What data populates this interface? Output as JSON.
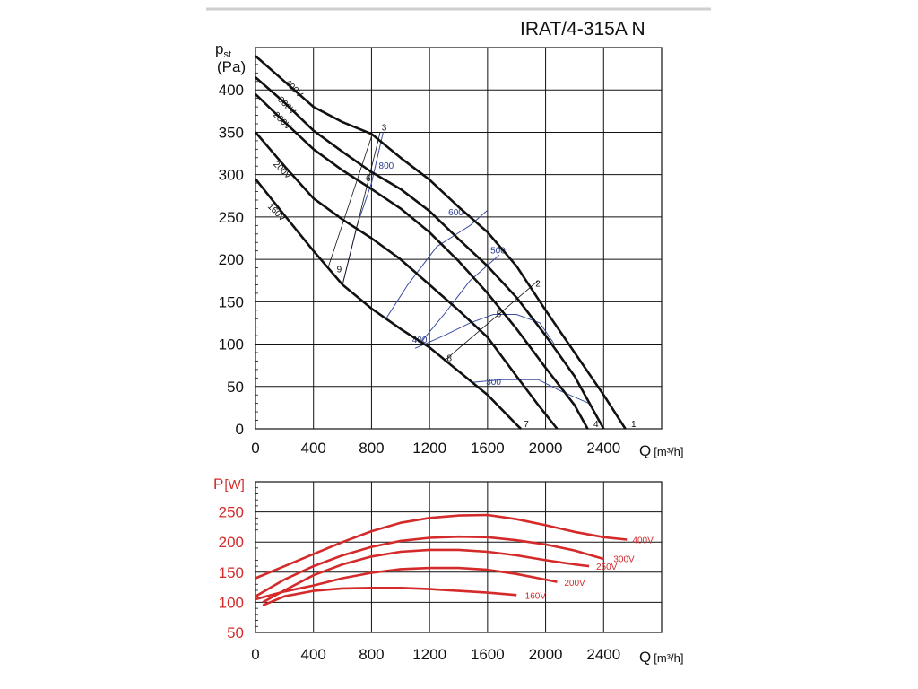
{
  "title": "IRAT/4-315A N",
  "chart_data": [
    {
      "type": "line",
      "name": "pressure-chart",
      "ylabel_main": "p",
      "ylabel_sub": "st",
      "ylabel_unit": "(Pa)",
      "xlabel": "Q",
      "xlabel_unit": "[m³/h]",
      "xlim": [
        0,
        2800
      ],
      "ylim": [
        0,
        450
      ],
      "xticks": [
        0,
        400,
        800,
        1200,
        1600,
        2000,
        2400
      ],
      "yticks": [
        0,
        50,
        100,
        150,
        200,
        250,
        300,
        350,
        400
      ],
      "series": [
        {
          "name": "400V",
          "points": [
            [
              0,
              440
            ],
            [
              200,
              410
            ],
            [
              400,
              380
            ],
            [
              600,
              362
            ],
            [
              800,
              348
            ],
            [
              1000,
              320
            ],
            [
              1200,
              294
            ],
            [
              1400,
              262
            ],
            [
              1600,
              232
            ],
            [
              1800,
              192
            ],
            [
              2000,
              140
            ],
            [
              2200,
              90
            ],
            [
              2400,
              40
            ],
            [
              2550,
              0
            ]
          ]
        },
        {
          "name": "300V",
          "points": [
            [
              0,
              415
            ],
            [
              200,
              385
            ],
            [
              400,
              352
            ],
            [
              600,
              327
            ],
            [
              800,
              303
            ],
            [
              1000,
              283
            ],
            [
              1200,
              257
            ],
            [
              1400,
              224
            ],
            [
              1600,
              192
            ],
            [
              1800,
              155
            ],
            [
              2000,
              110
            ],
            [
              2200,
              62
            ],
            [
              2400,
              0
            ]
          ]
        },
        {
          "name": "250V",
          "points": [
            [
              0,
              395
            ],
            [
              200,
              362
            ],
            [
              400,
              330
            ],
            [
              600,
              305
            ],
            [
              800,
              283
            ],
            [
              1000,
              260
            ],
            [
              1200,
              232
            ],
            [
              1400,
              198
            ],
            [
              1600,
              160
            ],
            [
              1800,
              118
            ],
            [
              2000,
              72
            ],
            [
              2200,
              28
            ],
            [
              2290,
              0
            ]
          ]
        },
        {
          "name": "200V",
          "points": [
            [
              0,
              350
            ],
            [
              200,
              310
            ],
            [
              400,
              272
            ],
            [
              600,
              247
            ],
            [
              800,
              225
            ],
            [
              1000,
              200
            ],
            [
              1200,
              170
            ],
            [
              1400,
              140
            ],
            [
              1600,
              108
            ],
            [
              1800,
              62
            ],
            [
              1950,
              28
            ],
            [
              2080,
              0
            ]
          ]
        },
        {
          "name": "160V",
          "points": [
            [
              0,
              295
            ],
            [
              200,
              252
            ],
            [
              400,
              210
            ],
            [
              600,
              170
            ],
            [
              800,
              142
            ],
            [
              1000,
              118
            ],
            [
              1200,
              96
            ],
            [
              1400,
              68
            ],
            [
              1600,
              40
            ],
            [
              1800,
              5
            ],
            [
              1830,
              0
            ]
          ]
        }
      ],
      "curve_labels": [
        "400V",
        "300V",
        "250V",
        "200V",
        "160V"
      ],
      "efficiency_lines": [
        {
          "label": "800"
        },
        {
          "label": "600"
        },
        {
          "label": "500"
        },
        {
          "label": "400"
        },
        {
          "label": "300"
        }
      ],
      "point_labels": [
        "1",
        "2",
        "3",
        "4",
        "5",
        "6",
        "7",
        "8",
        "9"
      ]
    },
    {
      "type": "line",
      "name": "power-chart",
      "ylabel_main": "P",
      "ylabel_unit": "[W]",
      "xlabel": "Q",
      "xlabel_unit": "[m³/h]",
      "xlim": [
        0,
        2800
      ],
      "ylim": [
        50,
        300
      ],
      "xticks": [
        0,
        400,
        800,
        1200,
        1600,
        2000,
        2400
      ],
      "yticks": [
        50,
        100,
        150,
        200,
        250
      ],
      "series": [
        {
          "name": "400V",
          "points": [
            [
              0,
              140
            ],
            [
              200,
              160
            ],
            [
              400,
              180
            ],
            [
              600,
              200
            ],
            [
              800,
              218
            ],
            [
              1000,
              232
            ],
            [
              1200,
              240
            ],
            [
              1400,
              244
            ],
            [
              1600,
              245
            ],
            [
              1800,
              238
            ],
            [
              2000,
              228
            ],
            [
              2200,
              217
            ],
            [
              2400,
              208
            ],
            [
              2560,
              204
            ]
          ]
        },
        {
          "name": "300V",
          "points": [
            [
              0,
              110
            ],
            [
              200,
              138
            ],
            [
              400,
              160
            ],
            [
              600,
              178
            ],
            [
              800,
              192
            ],
            [
              1000,
              202
            ],
            [
              1200,
              207
            ],
            [
              1400,
              209
            ],
            [
              1600,
              208
            ],
            [
              1800,
              203
            ],
            [
              2000,
              196
            ],
            [
              2200,
              186
            ],
            [
              2400,
              172
            ]
          ]
        },
        {
          "name": "250V",
          "points": [
            [
              50,
              100
            ],
            [
              200,
              120
            ],
            [
              400,
              145
            ],
            [
              600,
              163
            ],
            [
              800,
              176
            ],
            [
              1000,
              184
            ],
            [
              1200,
              187
            ],
            [
              1400,
              187
            ],
            [
              1600,
              184
            ],
            [
              1800,
              178
            ],
            [
              2000,
              170
            ],
            [
              2200,
              163
            ],
            [
              2300,
              160
            ]
          ]
        },
        {
          "name": "200V",
          "points": [
            [
              0,
              105
            ],
            [
              200,
              118
            ],
            [
              400,
              128
            ],
            [
              600,
              140
            ],
            [
              800,
              149
            ],
            [
              1000,
              155
            ],
            [
              1200,
              157
            ],
            [
              1400,
              157
            ],
            [
              1600,
              154
            ],
            [
              1800,
              147
            ],
            [
              1950,
              140
            ],
            [
              2080,
              134
            ]
          ]
        },
        {
          "name": "160V",
          "points": [
            [
              50,
              95
            ],
            [
              200,
              110
            ],
            [
              400,
              119
            ],
            [
              600,
              123
            ],
            [
              800,
              124
            ],
            [
              1000,
              124
            ],
            [
              1200,
              122
            ],
            [
              1400,
              119
            ],
            [
              1600,
              116
            ],
            [
              1800,
              112
            ]
          ]
        }
      ],
      "curve_labels": [
        "400V",
        "300V",
        "250V",
        "200V",
        "160V"
      ]
    }
  ]
}
